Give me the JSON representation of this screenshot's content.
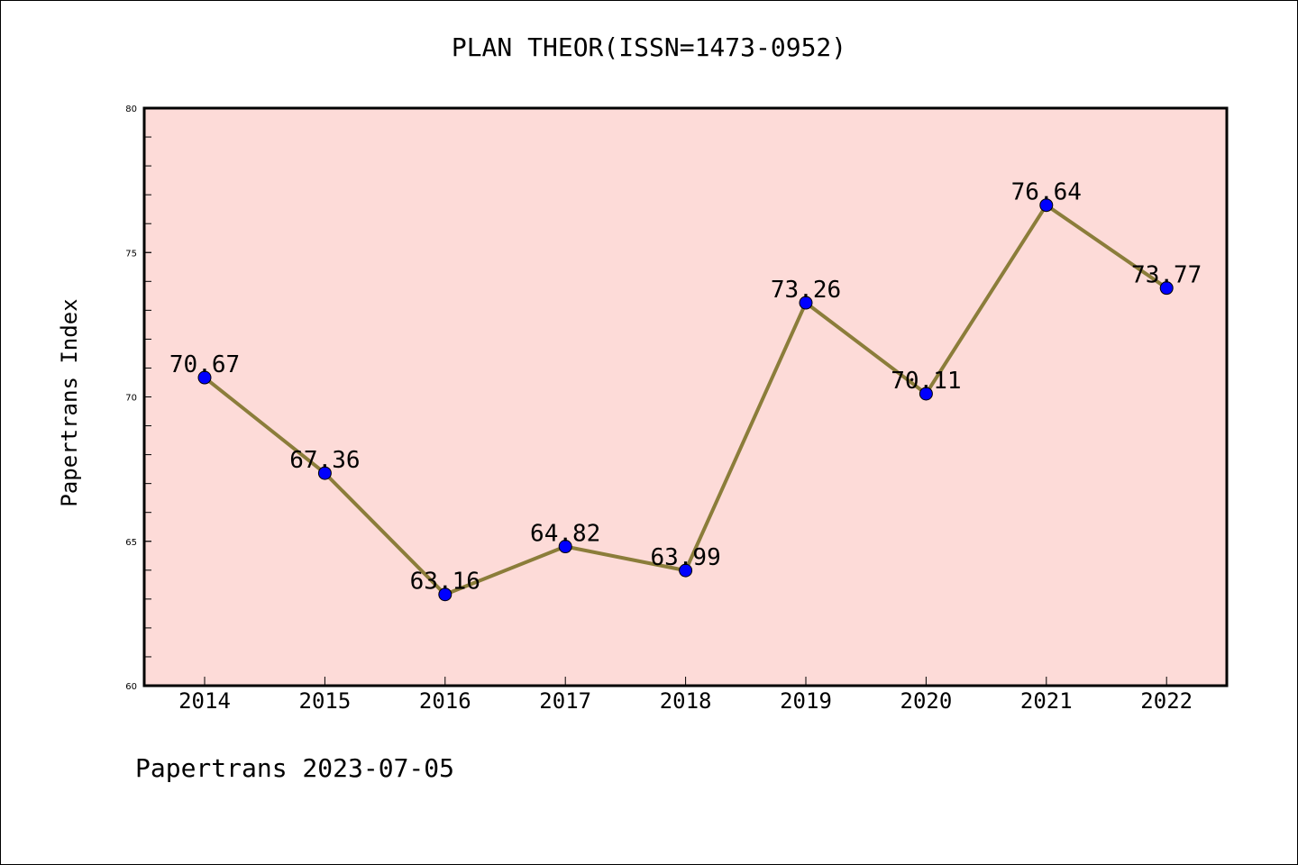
{
  "title": "PLAN THEOR(ISSN=1473-0952)",
  "footer": "Papertrans 2023-07-05",
  "colors": {
    "plot_background": "#fddbd8",
    "line": "#8b7d3a",
    "marker": "#0000ff",
    "axis": "#000000"
  },
  "chart_data": {
    "type": "line",
    "title": "PLAN THEOR(ISSN=1473-0952)",
    "xlabel": "",
    "ylabel": "Papertrans Index",
    "categories": [
      "2014",
      "2015",
      "2016",
      "2017",
      "2018",
      "2019",
      "2020",
      "2021",
      "2022"
    ],
    "values": [
      70.67,
      67.36,
      63.16,
      64.82,
      63.99,
      73.26,
      70.11,
      76.64,
      73.77
    ],
    "data_labels": [
      "70.67",
      "67.36",
      "63.16",
      "64.82",
      "63.99",
      "73.26",
      "70.11",
      "76.64",
      "73.77"
    ],
    "ylim": [
      60,
      80
    ],
    "yticks": [
      60,
      65,
      70,
      75,
      80
    ],
    "ytick_labels": [
      "60",
      "65",
      "70",
      "75",
      "80"
    ],
    "grid": false,
    "legend": "none"
  }
}
